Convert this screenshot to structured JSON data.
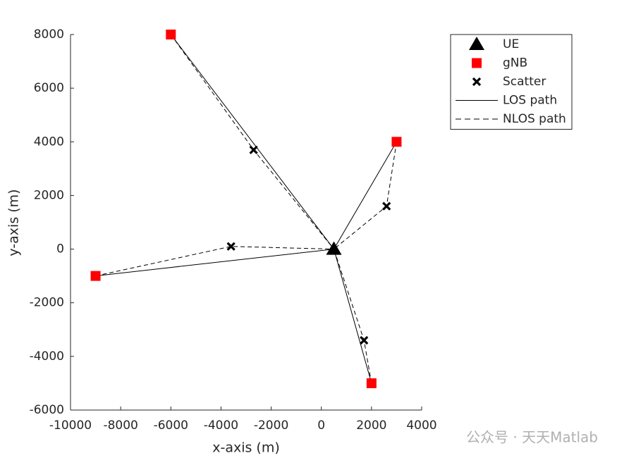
{
  "chart_data": {
    "type": "scatter",
    "xlabel": "x-axis (m)",
    "ylabel": "y-axis (m)",
    "xlim": [
      -10000,
      4000
    ],
    "ylim": [
      -6000,
      8000
    ],
    "xticks": [
      -10000,
      -8000,
      -6000,
      -4000,
      -2000,
      0,
      2000,
      4000
    ],
    "yticks": [
      -6000,
      -4000,
      -2000,
      0,
      2000,
      4000,
      6000,
      8000
    ],
    "legend": "upper right",
    "series": [
      {
        "name": "UE",
        "marker": "triangle",
        "color": "#000000",
        "x": [
          500
        ],
        "y": [
          0
        ]
      },
      {
        "name": "gNB",
        "marker": "square",
        "color": "#ff0000",
        "x": [
          -6000,
          3000,
          -9000,
          2000
        ],
        "y": [
          8000,
          4000,
          -1000,
          -5000
        ]
      },
      {
        "name": "Scatter",
        "marker": "x",
        "color": "#000000",
        "x": [
          -2700,
          2600,
          -3600,
          1700
        ],
        "y": [
          3700,
          1600,
          100,
          -3400
        ]
      },
      {
        "name": "LOS path",
        "line": "solid",
        "color": "#000000",
        "x": [
          500,
          -6000,
          null,
          500,
          3000,
          null,
          500,
          -9000,
          null,
          500,
          2000
        ],
        "y": [
          0,
          8000,
          null,
          0,
          4000,
          null,
          0,
          -1000,
          null,
          0,
          -5000
        ]
      },
      {
        "name": "NLOS path",
        "line": "dashed",
        "color": "#000000",
        "x": [
          -6000,
          -2700,
          500,
          null,
          3000,
          2600,
          500,
          null,
          -9000,
          -3600,
          500,
          null,
          2000,
          1700,
          500
        ],
        "y": [
          8000,
          3700,
          0,
          null,
          4000,
          1600,
          0,
          null,
          -1000,
          100,
          0,
          null,
          -5000,
          -3400,
          0
        ]
      }
    ],
    "watermark": "公众号 · 天天Matlab"
  }
}
